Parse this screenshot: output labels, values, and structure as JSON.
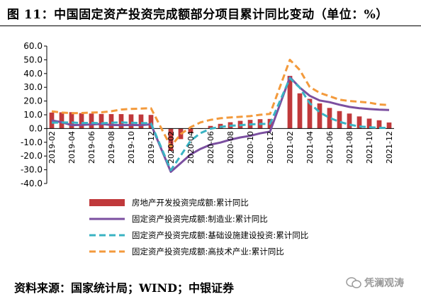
{
  "page": {
    "title": "图 11：中国固定资产投资完成额部分项目累计同比变动（单位：%）",
    "source": "资料来源：国家统计局；WIND；中银证券",
    "watermark": "凭澜观涛"
  },
  "chart_data": {
    "type": "bar+line",
    "title": "",
    "xlabel": "",
    "ylabel": "",
    "ylim": [
      -40,
      60
    ],
    "yticks": [
      "60.0",
      "50.0",
      "40.0",
      "30.0",
      "20.0",
      "10.0",
      "0.0",
      "-10.0",
      "-20.0",
      "-30.0",
      "-40.0"
    ],
    "grid": false,
    "legend_position": "bottom",
    "x": [
      "2019-02",
      "2019-03",
      "2019-04",
      "2019-05",
      "2019-06",
      "2019-07",
      "2019-08",
      "2019-09",
      "2019-10",
      "2019-11",
      "2019-12",
      "2020-01",
      "2020-02",
      "2020-03",
      "2020-04",
      "2020-05",
      "2020-06",
      "2020-07",
      "2020-08",
      "2020-09",
      "2020-10",
      "2020-11",
      "2020-12",
      "2021-01",
      "2021-02",
      "2021-03",
      "2021-04",
      "2021-05",
      "2021-06",
      "2021-07",
      "2021-08",
      "2021-09",
      "2021-10",
      "2021-11",
      "2021-12"
    ],
    "xticklabels": [
      "2019-02",
      "2019-04",
      "2019-06",
      "2019-08",
      "2019-10",
      "2019-12",
      "2020-02",
      "2020-04",
      "2020-06",
      "2020-08",
      "2020-10",
      "2020-12",
      "2021-02",
      "2021-04",
      "2021-06",
      "2021-08",
      "2021-10",
      "2021-12"
    ],
    "series": [
      {
        "name": "房地产开发投资完成额:累计同比",
        "kind": "bar",
        "color": "#c0393b",
        "values": [
          11.6,
          11.8,
          11.9,
          11.2,
          10.9,
          10.6,
          10.5,
          10.5,
          10.3,
          10.2,
          9.9,
          null,
          -16.3,
          -7.7,
          -3.3,
          -0.3,
          1.9,
          3.4,
          4.6,
          5.6,
          6.3,
          6.8,
          7.0,
          null,
          38.3,
          25.6,
          21.6,
          18.3,
          15.0,
          12.7,
          10.9,
          8.8,
          7.2,
          6.0,
          4.4
        ]
      },
      {
        "name": "固定资产投资完成额:制造业:累计同比",
        "kind": "line",
        "style": "solid",
        "color": "#7b4fa0",
        "values": [
          5.9,
          4.6,
          2.5,
          2.7,
          3.0,
          3.3,
          2.6,
          2.5,
          2.6,
          2.5,
          3.1,
          null,
          -31.5,
          -25.2,
          -18.8,
          -14.8,
          -11.7,
          -10.2,
          -8.1,
          -6.5,
          -5.3,
          -3.5,
          -2.2,
          null,
          37.3,
          29.8,
          23.8,
          20.4,
          19.2,
          17.3,
          15.7,
          14.8,
          14.2,
          13.7,
          13.5
        ]
      },
      {
        "name": "固定资产投资完成额:基础设施建设投资:累计同比",
        "kind": "line",
        "style": "dashed",
        "color": "#3ab3c3",
        "values": [
          4.3,
          4.4,
          4.4,
          4.0,
          4.1,
          3.8,
          4.2,
          4.5,
          4.2,
          4.0,
          3.8,
          null,
          -30.3,
          -19.7,
          -8.8,
          -3.3,
          -0.1,
          1.2,
          2.0,
          2.4,
          3.0,
          3.3,
          3.4,
          null,
          36.6,
          29.7,
          18.4,
          11.8,
          7.8,
          4.9,
          2.9,
          1.5,
          1.0,
          0.5,
          0.4
        ]
      },
      {
        "name": "固定资产投资完成额:高技术产业:累计同比",
        "kind": "line",
        "style": "dashed",
        "color": "#f39a3c",
        "values": [
          12.5,
          11.6,
          11.2,
          11.3,
          11.6,
          11.8,
          12.6,
          13.8,
          14.3,
          14.5,
          14.8,
          null,
          -13.2,
          -4.0,
          1.0,
          4.5,
          6.3,
          7.5,
          8.1,
          8.5,
          9.0,
          10.0,
          10.6,
          null,
          50.0,
          42.6,
          30.2,
          26.0,
          23.5,
          21.0,
          20.0,
          19.5,
          18.8,
          17.5,
          17.1
        ]
      }
    ]
  }
}
